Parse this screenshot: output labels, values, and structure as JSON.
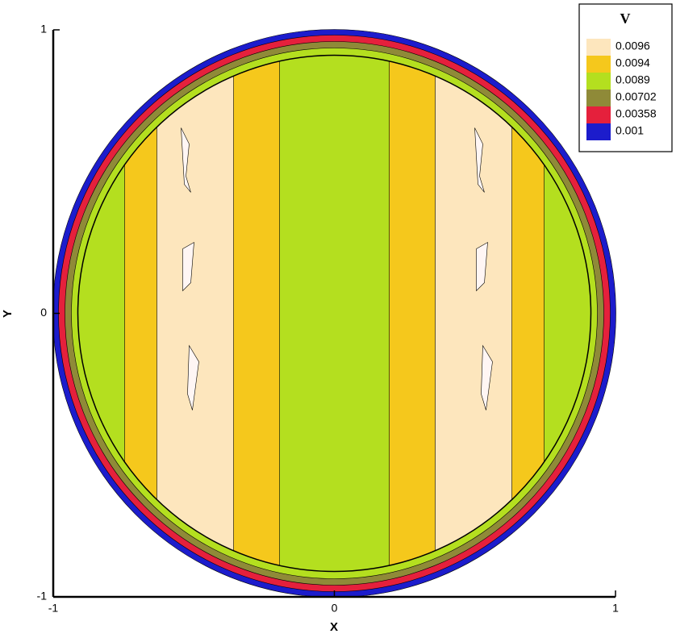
{
  "chart_data": {
    "type": "contour",
    "x_label": "X",
    "y_label": "Y",
    "xlim": [
      -1,
      1
    ],
    "ylim": [
      -1,
      1
    ],
    "xticks": [
      -1,
      0,
      1
    ],
    "yticks": [
      -1,
      0,
      1
    ],
    "legend_title": "V",
    "legend_position": "upper right",
    "levels": [
      {
        "value": 0.0096,
        "color": "#fde6bd"
      },
      {
        "value": 0.0094,
        "color": "#f5c81c"
      },
      {
        "value": 0.0089,
        "color": "#b4df1f"
      },
      {
        "value": 0.00702,
        "color": "#8f8a38"
      },
      {
        "value": 0.00358,
        "color": "#e5203c"
      },
      {
        "value": 0.001,
        "color": "#1c1ccc"
      }
    ]
  }
}
